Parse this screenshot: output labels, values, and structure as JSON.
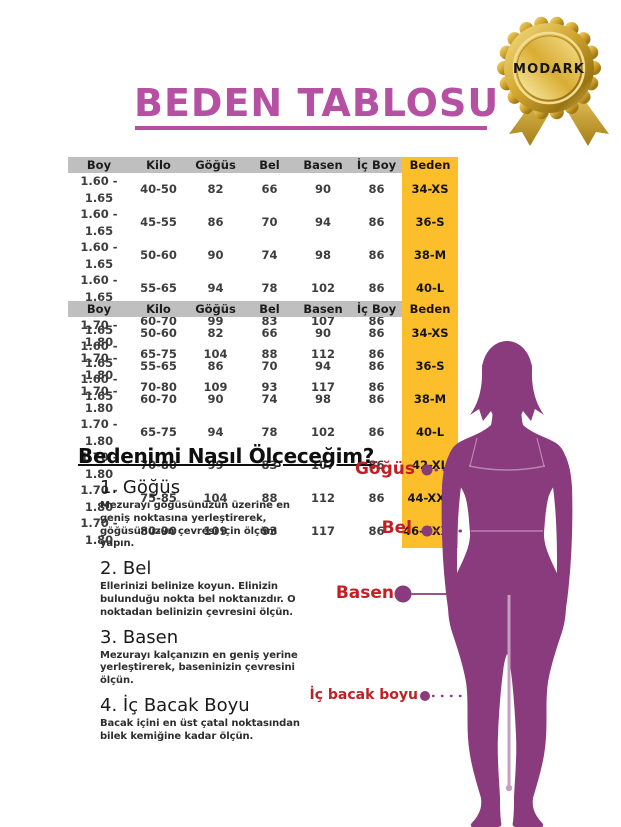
{
  "badge": {
    "label": "MODARK"
  },
  "title": "BEDEN TABLOSU",
  "tables": [
    {
      "headers": [
        "Boy",
        "Kilo",
        "Göğüs",
        "Bel",
        "Basen",
        "İç Boy",
        "Beden"
      ],
      "rows": [
        [
          "1.60 - 1.65",
          "40-50",
          "82",
          "66",
          "90",
          "86",
          "34-XS"
        ],
        [
          "1.60 - 1.65",
          "45-55",
          "86",
          "70",
          "94",
          "86",
          "36-S"
        ],
        [
          "1.60 - 1.65",
          "50-60",
          "90",
          "74",
          "98",
          "86",
          "38-M"
        ],
        [
          "1.60 - 1.65",
          "55-65",
          "94",
          "78",
          "102",
          "86",
          "40-L"
        ],
        [
          "1.60 - 1.65",
          "60-70",
          "99",
          "83",
          "107",
          "86",
          "42-XL"
        ],
        [
          "1.60 - 1.65",
          "65-75",
          "104",
          "88",
          "112",
          "86",
          "44-XXL"
        ],
        [
          "1.60 - 1.65",
          "70-80",
          "109",
          "93",
          "117",
          "86",
          "46-XXXL"
        ]
      ]
    },
    {
      "headers": [
        "Boy",
        "Kilo",
        "Göğüs",
        "Bel",
        "Basen",
        "İç Boy",
        "Beden"
      ],
      "rows": [
        [
          "1.70 - 1.80",
          "50-60",
          "82",
          "66",
          "90",
          "86",
          "34-XS"
        ],
        [
          "1.70 - 1.80",
          "55-65",
          "86",
          "70",
          "94",
          "86",
          "36-S"
        ],
        [
          "1.70 - 1.80",
          "60-70",
          "90",
          "74",
          "98",
          "86",
          "38-M"
        ],
        [
          "1.70 - 1.80",
          "65-75",
          "94",
          "78",
          "102",
          "86",
          "40-L"
        ],
        [
          "1.70 - 1.80",
          "70-80",
          "99",
          "83",
          "107",
          "86",
          "42-XL"
        ],
        [
          "1.70 - 1.80",
          "75-85",
          "104",
          "88",
          "112",
          "86",
          "44-XXL"
        ],
        [
          "1.70 - 1.80",
          "80-90",
          "109",
          "93",
          "117",
          "86",
          "46-XXXL"
        ]
      ]
    }
  ],
  "howto": {
    "heading": "Bedenimi Nasıl Ölçeceğim?",
    "steps": [
      {
        "title": "1. Göğüs",
        "text": "Mezurayı göğüsünüzün üzerine en geniş noktasına yerleştirerek, göğüsünüzün çevresi için ölçüm yapın."
      },
      {
        "title": "2. Bel",
        "text": "Ellerinizi belinize koyun. Elinizin bulunduğu nokta bel noktanızdır. O noktadan belinizin çevresini ölçün."
      },
      {
        "title": "3. Basen",
        "text": "Mezurayı kalçanızın en geniş yerine yerleştirerek, baseninizin çevresini ölçün."
      },
      {
        "title": "4. İç Bacak Boyu",
        "text": "Bacak içini en üst çatal noktasından bilek kemiğine kadar ölçün."
      }
    ]
  },
  "figure_labels": {
    "gogus": "Göğüs",
    "bel": "Bel",
    "basen": "Basen",
    "ic_bacak": "İç bacak boyu"
  },
  "colors": {
    "title": "#b650a2",
    "header_bg": "#bfbfbf",
    "beden_bg": "#fdbe2c",
    "label_red": "#c21f25",
    "silhouette": "#8a3b7d",
    "inseam": "#c49fc0"
  }
}
